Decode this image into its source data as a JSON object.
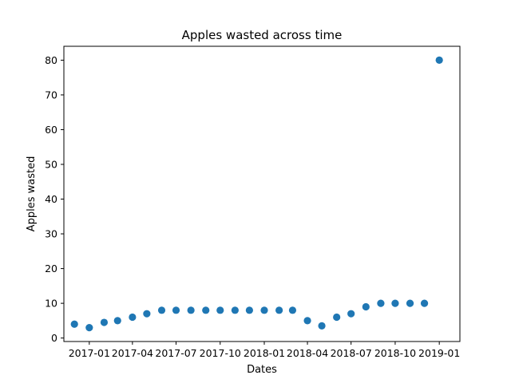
{
  "chart_data": {
    "type": "scatter",
    "title": "Apples wasted across time",
    "xlabel": "Dates",
    "ylabel": "Apples wasted",
    "marker_color": "#1f77b4",
    "grid": false,
    "legend": "none",
    "ylim": [
      -1,
      84
    ],
    "xlim": [
      "2016-11-09",
      "2019-02-13"
    ],
    "y_ticks": [
      0,
      10,
      20,
      30,
      40,
      50,
      60,
      70,
      80
    ],
    "x_ticks": [
      {
        "date": "2017-01-01",
        "label": "2017-01"
      },
      {
        "date": "2017-04-01",
        "label": "2017-04"
      },
      {
        "date": "2017-07-01",
        "label": "2017-07"
      },
      {
        "date": "2017-10-01",
        "label": "2017-10"
      },
      {
        "date": "2018-01-01",
        "label": "2018-01"
      },
      {
        "date": "2018-04-01",
        "label": "2018-04"
      },
      {
        "date": "2018-07-01",
        "label": "2018-07"
      },
      {
        "date": "2018-10-01",
        "label": "2018-10"
      },
      {
        "date": "2019-01-01",
        "label": "2019-01"
      }
    ],
    "points": [
      {
        "x": "2016-12-01",
        "y": 4
      },
      {
        "x": "2017-01-01",
        "y": 3
      },
      {
        "x": "2017-02-01",
        "y": 4.5
      },
      {
        "x": "2017-03-01",
        "y": 5
      },
      {
        "x": "2017-04-01",
        "y": 6
      },
      {
        "x": "2017-05-01",
        "y": 7
      },
      {
        "x": "2017-06-01",
        "y": 8
      },
      {
        "x": "2017-07-01",
        "y": 8
      },
      {
        "x": "2017-08-01",
        "y": 8
      },
      {
        "x": "2017-09-01",
        "y": 8
      },
      {
        "x": "2017-10-01",
        "y": 8
      },
      {
        "x": "2017-11-01",
        "y": 8
      },
      {
        "x": "2017-12-01",
        "y": 8
      },
      {
        "x": "2018-01-01",
        "y": 8
      },
      {
        "x": "2018-02-01",
        "y": 8
      },
      {
        "x": "2018-03-01",
        "y": 8
      },
      {
        "x": "2018-04-01",
        "y": 5
      },
      {
        "x": "2018-05-01",
        "y": 3.5
      },
      {
        "x": "2018-06-01",
        "y": 6
      },
      {
        "x": "2018-07-01",
        "y": 7
      },
      {
        "x": "2018-08-01",
        "y": 9
      },
      {
        "x": "2018-09-01",
        "y": 10
      },
      {
        "x": "2018-10-01",
        "y": 10
      },
      {
        "x": "2018-11-01",
        "y": 10
      },
      {
        "x": "2018-12-01",
        "y": 10
      },
      {
        "x": "2019-01-01",
        "y": 80
      }
    ]
  }
}
